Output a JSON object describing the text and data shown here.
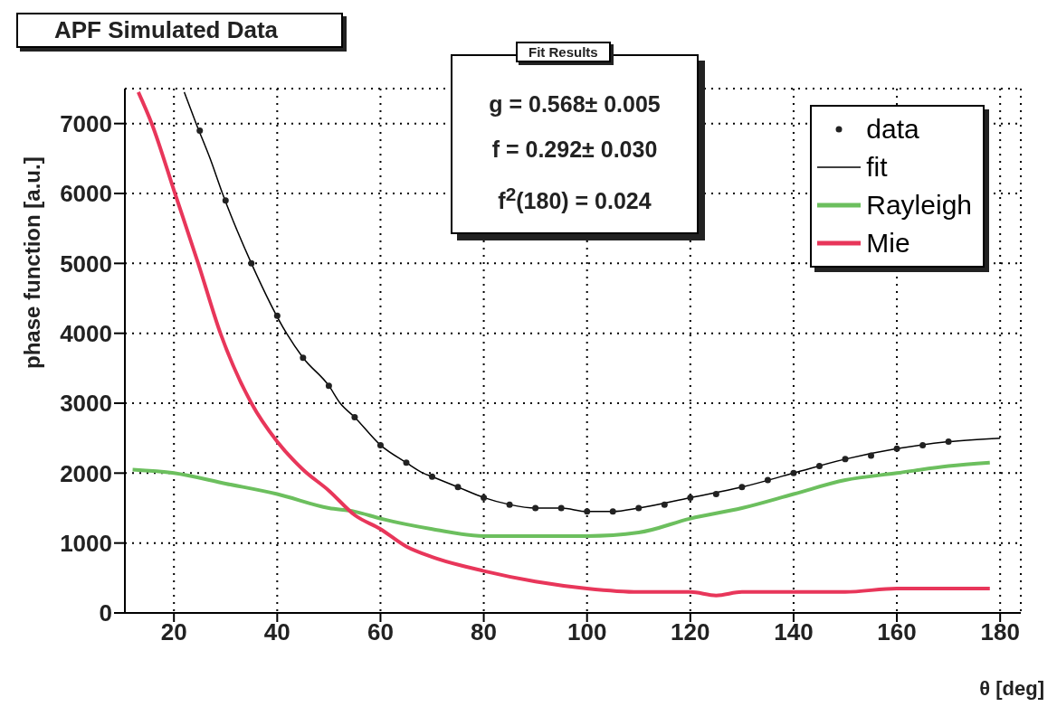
{
  "chart_data": {
    "type": "line",
    "title": "APF Simulated Data",
    "xlabel": "θ [deg]",
    "ylabel": "phase function [a.u.]",
    "annotations": [
      "Fit Results",
      "g = 0.568± 0.005",
      "f = 0.292± 0.030",
      "f$^{2}$(180) = 0.024"
    ],
    "xlim": [
      10.5,
      184
    ],
    "xticks": [
      20,
      40,
      60,
      80,
      100,
      120,
      140,
      160,
      180
    ],
    "ylim": [
      0,
      7500
    ],
    "yticks": [
      0,
      1000,
      2000,
      3000,
      4000,
      5000,
      6000,
      7000
    ],
    "grid": true,
    "legend": "top right",
    "series": [
      {
        "name": "data",
        "type": "scatter",
        "marker": "circle",
        "color": "#222222",
        "x": [
          25,
          30,
          35,
          40,
          45,
          50,
          55,
          60,
          65,
          70,
          75,
          80,
          85,
          90,
          95,
          100,
          105,
          110,
          115,
          120,
          125,
          130,
          135,
          140,
          145,
          150,
          155,
          160,
          165,
          170
        ],
        "values": [
          6900,
          5900,
          5000,
          4250,
          3650,
          3250,
          2800,
          2400,
          2150,
          1950,
          1800,
          1650,
          1550,
          1500,
          1500,
          1450,
          1450,
          1500,
          1550,
          1650,
          1700,
          1800,
          1900,
          2000,
          2100,
          2200,
          2250,
          2350,
          2400,
          2450
        ]
      },
      {
        "name": "fit",
        "color": "#000000",
        "x": [
          22,
          24.3,
          27,
          29.4,
          35,
          41.8,
          45,
          50,
          52.2,
          55,
          60,
          65,
          68.3,
          70,
          75,
          80,
          85,
          90,
          95,
          100,
          105,
          110,
          120,
          130,
          140,
          150,
          160,
          170,
          180
        ],
        "values": [
          7450,
          7000,
          6500,
          6000,
          5000,
          4000,
          3650,
          3250,
          3000,
          2800,
          2400,
          2150,
          2000,
          1950,
          1800,
          1650,
          1550,
          1500,
          1500,
          1450,
          1450,
          1500,
          1650,
          1800,
          2000,
          2200,
          2350,
          2450,
          2500
        ]
      },
      {
        "name": "Rayleigh",
        "color": "#6cbf5e",
        "x": [
          12,
          20,
          30,
          40,
          50,
          55,
          60,
          70,
          80,
          90,
          100,
          110,
          120,
          130,
          140,
          150,
          160,
          170,
          178
        ],
        "values": [
          2050,
          2000,
          1850,
          1700,
          1500,
          1450,
          1350,
          1200,
          1100,
          1100,
          1100,
          1150,
          1350,
          1500,
          1700,
          1900,
          2000,
          2100,
          2150
        ]
      },
      {
        "name": "Mie",
        "color": "#e8365a",
        "x": [
          13.1,
          15.7,
          20.2,
          24.7,
          29,
          35,
          40,
          45,
          50,
          55,
          60,
          65,
          70,
          80,
          90,
          100,
          110,
          120,
          125,
          130,
          140,
          150,
          160,
          170,
          178
        ],
        "values": [
          7450,
          7000,
          6000,
          5000,
          4000,
          3000,
          2450,
          2050,
          1750,
          1400,
          1200,
          950,
          800,
          600,
          450,
          350,
          300,
          300,
          250,
          300,
          300,
          300,
          350,
          350,
          350
        ]
      }
    ]
  }
}
